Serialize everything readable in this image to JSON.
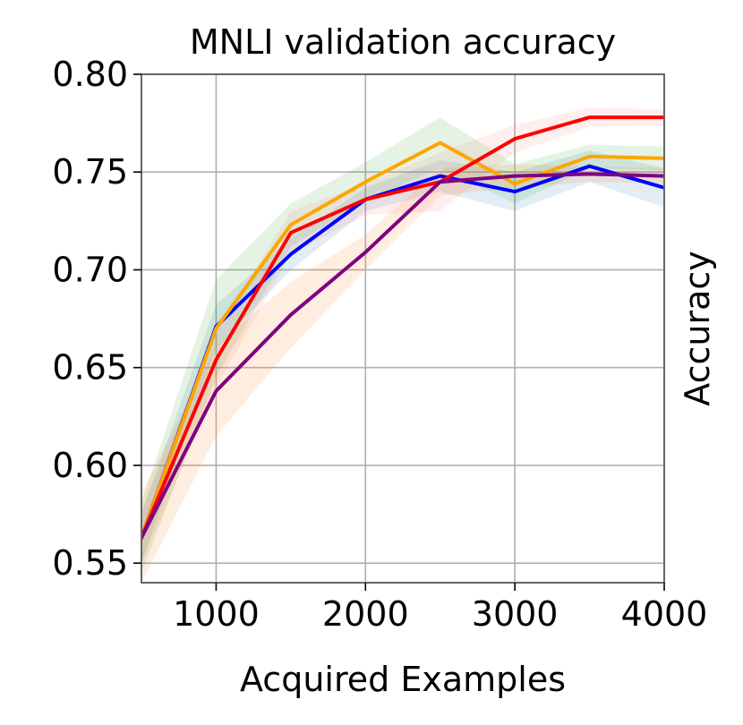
{
  "chart_data": {
    "type": "line",
    "title": "MNLI validation accuracy",
    "xlabel": "Acquired Examples",
    "ylabel": "Accuracy",
    "xlim": [
      500,
      4000
    ],
    "ylim": [
      0.54,
      0.8
    ],
    "xticks": [
      1000,
      2000,
      3000,
      4000
    ],
    "xtick_labels": [
      "1000",
      "2000",
      "3000",
      "4000"
    ],
    "yticks": [
      0.55,
      0.6,
      0.65,
      0.7,
      0.75,
      0.8
    ],
    "ytick_labels": [
      "0.55",
      "0.60",
      "0.65",
      "0.70",
      "0.75",
      "0.80"
    ],
    "grid": true,
    "x": [
      500,
      1000,
      1500,
      2000,
      2500,
      3000,
      3500,
      4000
    ],
    "series": [
      {
        "color": "#0000ff",
        "band_color": "#1f77b4",
        "values": [
          0.563,
          0.671,
          0.708,
          0.736,
          0.748,
          0.74,
          0.753,
          0.742
        ],
        "lower": [
          0.55,
          0.66,
          0.7,
          0.73,
          0.74,
          0.73,
          0.745,
          0.732
        ],
        "upper": [
          0.576,
          0.682,
          0.716,
          0.742,
          0.756,
          0.75,
          0.761,
          0.752
        ]
      },
      {
        "color": "#ffa500",
        "band_color": "#2ca02c",
        "values": [
          0.563,
          0.67,
          0.723,
          0.745,
          0.765,
          0.744,
          0.758,
          0.757
        ],
        "lower": [
          0.545,
          0.645,
          0.712,
          0.735,
          0.752,
          0.734,
          0.752,
          0.751
        ],
        "upper": [
          0.581,
          0.695,
          0.734,
          0.755,
          0.778,
          0.754,
          0.764,
          0.763
        ]
      },
      {
        "color": "#ff0000",
        "band_color": "#ff7f7f",
        "values": [
          0.563,
          0.654,
          0.719,
          0.736,
          0.745,
          0.767,
          0.778,
          0.778
        ],
        "lower": [
          0.55,
          0.64,
          0.708,
          0.728,
          0.73,
          0.76,
          0.773,
          0.774
        ],
        "upper": [
          0.576,
          0.668,
          0.73,
          0.744,
          0.76,
          0.774,
          0.783,
          0.782
        ]
      },
      {
        "color": "#800080",
        "band_color": "#ff7f0e",
        "values": [
          0.563,
          0.638,
          0.677,
          0.709,
          0.745,
          0.748,
          0.749,
          0.748
        ],
        "lower": [
          0.54,
          0.615,
          0.66,
          0.7,
          0.738,
          0.742,
          0.745,
          0.744
        ],
        "upper": [
          0.586,
          0.661,
          0.694,
          0.718,
          0.752,
          0.754,
          0.753,
          0.752
        ]
      }
    ]
  }
}
